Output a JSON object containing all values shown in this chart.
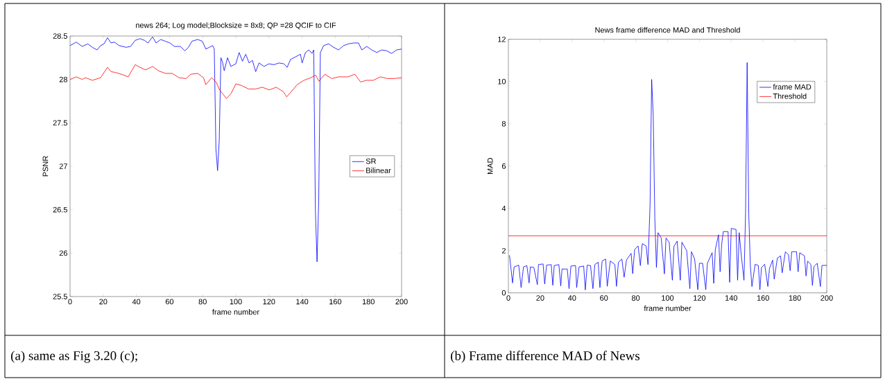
{
  "chart_data": [
    {
      "type": "line",
      "title": "news 264; Log model;Blocksize = 8x8; QP =28 QCIF to CIF",
      "xlabel": "frame number",
      "ylabel": "PSNR",
      "xlim": [
        0,
        200
      ],
      "ylim": [
        25.5,
        28.5
      ],
      "xticks": [
        0,
        20,
        40,
        60,
        80,
        100,
        120,
        140,
        160,
        180,
        200
      ],
      "yticks": [
        25.5,
        26,
        26.5,
        27,
        27.5,
        28,
        28.5
      ],
      "legend": "right",
      "annotations": [
        "(a) same as Fig 3.20 (c);"
      ],
      "series": [
        {
          "name": "SR",
          "color": "#0000ff",
          "x": [
            0,
            3.8,
            7.3,
            10.7,
            13.5,
            16.3,
            18.4,
            20.5,
            22.6,
            24.7,
            26.8,
            29.6,
            33.8,
            36.5,
            39.3,
            42.1,
            44.9,
            47,
            49.8,
            51.9,
            54.7,
            57.5,
            60.3,
            63,
            66.5,
            69.3,
            71.4,
            73.5,
            77,
            79.8,
            81.9,
            84,
            86,
            87,
            88,
            89,
            90,
            91,
            92,
            93,
            95,
            97,
            100,
            102,
            104,
            106,
            108,
            110,
            112,
            114,
            117,
            120,
            123,
            126,
            129,
            131,
            133,
            136,
            139,
            140,
            142,
            144,
            146,
            147,
            148,
            149,
            150,
            151,
            153,
            156,
            159,
            162,
            165,
            168,
            171,
            174,
            176,
            179,
            182,
            185,
            188,
            191,
            194,
            197,
            200
          ],
          "values": [
            28.39,
            28.43,
            28.38,
            28.41,
            28.37,
            28.34,
            28.39,
            28.41,
            28.48,
            28.42,
            28.43,
            28.39,
            28.37,
            28.38,
            28.45,
            28.47,
            28.45,
            28.42,
            28.49,
            28.42,
            28.46,
            28.44,
            28.42,
            28.38,
            28.38,
            28.33,
            28.37,
            28.44,
            28.46,
            28.44,
            28.35,
            28.37,
            28.39,
            28.35,
            27.2,
            26.95,
            27.3,
            28.25,
            28.2,
            28.1,
            28.25,
            28.15,
            28.18,
            28.31,
            28.21,
            28.29,
            28.19,
            28.22,
            28.09,
            28.19,
            28.15,
            28.18,
            28.17,
            28.19,
            28.18,
            28.14,
            28.23,
            28.26,
            28.29,
            28.19,
            28.31,
            28.34,
            28.3,
            28.34,
            26.5,
            25.9,
            26.6,
            28.31,
            28.39,
            28.41,
            28.37,
            28.34,
            28.39,
            28.41,
            28.42,
            28.42,
            28.34,
            28.38,
            28.34,
            28.31,
            28.34,
            28.33,
            28.3,
            28.34,
            28.35
          ]
        },
        {
          "name": "Bilinear",
          "color": "#ff0000",
          "x": [
            0,
            3.8,
            7.3,
            9.3,
            13.5,
            18.4,
            22.6,
            24.7,
            27.5,
            31,
            35.1,
            39.3,
            42.1,
            45.6,
            49.8,
            53.3,
            57.5,
            61.6,
            65.8,
            70,
            72.8,
            77,
            80.5,
            81.9,
            85.4,
            88.1,
            90.2,
            94.4,
            97.2,
            100,
            103.5,
            107.7,
            111.9,
            116,
            120.2,
            124.4,
            128.6,
            130.7,
            133.5,
            137,
            141.1,
            145.3,
            148.1,
            150.2,
            153.7,
            157.9,
            162.1,
            167.6,
            171.8,
            175.3,
            178.8,
            183,
            187.2,
            191.4,
            195.5,
            200
          ],
          "values": [
            28.0,
            28.03,
            28.0,
            28.02,
            27.99,
            28.02,
            28.14,
            28.09,
            28.08,
            28.06,
            28.03,
            28.17,
            28.14,
            28.11,
            28.15,
            28.1,
            28.07,
            28.07,
            28.02,
            28.01,
            28.06,
            28.07,
            28.02,
            27.94,
            28.02,
            27.97,
            27.88,
            27.78,
            27.84,
            27.95,
            27.93,
            27.89,
            27.89,
            27.91,
            27.88,
            27.91,
            27.86,
            27.8,
            27.86,
            27.94,
            27.99,
            28.02,
            28.05,
            27.98,
            28.06,
            28.01,
            28.03,
            28.03,
            28.06,
            27.97,
            27.99,
            27.99,
            28.03,
            28.01,
            28.01,
            28.02
          ]
        }
      ]
    },
    {
      "type": "line",
      "title": "News frame difference MAD and Threshold",
      "xlabel": "frame number",
      "ylabel": "MAD",
      "xlim": [
        0,
        200
      ],
      "ylim": [
        0,
        12
      ],
      "xticks": [
        0,
        20,
        40,
        60,
        80,
        100,
        120,
        140,
        160,
        180,
        200
      ],
      "yticks": [
        0,
        2,
        4,
        6,
        8,
        10,
        12
      ],
      "legend": "top right",
      "annotations": [
        "(b) Frame difference MAD of News"
      ],
      "series": [
        {
          "name": "frame MAD",
          "color": "#0000ff",
          "x": [
            0.7,
            2.6,
            3.6,
            6.5,
            8,
            9.5,
            11.6,
            13,
            13.8,
            16,
            18.2,
            18.9,
            21.8,
            22.8,
            24,
            26.9,
            27.9,
            28.8,
            31.7,
            32.9,
            33.7,
            37,
            38.1,
            39.3,
            42.2,
            42.9,
            44.4,
            47.3,
            48.3,
            49.5,
            51.6,
            53.1,
            54.3,
            56.4,
            57.5,
            58.9,
            61.1,
            62.1,
            64,
            66.9,
            67.9,
            69.1,
            71.3,
            72.7,
            74.2,
            77.1,
            78.1,
            79.3,
            81.5,
            82.9,
            84.1,
            86.5,
            87.7,
            89,
            90,
            91,
            92,
            93,
            94,
            96,
            98,
            99,
            101,
            103,
            104,
            106,
            108,
            109,
            112,
            114,
            115,
            117,
            119,
            120,
            122,
            124,
            125,
            128,
            129,
            130,
            132,
            133,
            134,
            135,
            138,
            139,
            140,
            143,
            144,
            145,
            146,
            148,
            149,
            150,
            151,
            152,
            153,
            155,
            157,
            158,
            159,
            161,
            163,
            164,
            166,
            167,
            169,
            171,
            172,
            174,
            176,
            177,
            178,
            181,
            182,
            183,
            186,
            187,
            188,
            190,
            191,
            192,
            194,
            196,
            197,
            200
          ],
          "values": [
            1.78,
            0.47,
            1.23,
            1.31,
            0.25,
            1.23,
            1.29,
            0.47,
            1.23,
            1.2,
            0.39,
            1.34,
            1.37,
            0.42,
            1.31,
            1.34,
            0.36,
            1.29,
            1.34,
            0.33,
            1.13,
            1.13,
            0.2,
            1.27,
            1.29,
            0.25,
            1.23,
            1.27,
            0.14,
            1.31,
            1.29,
            0.2,
            1.34,
            1.45,
            0.25,
            1.51,
            1.6,
            0.31,
            1.51,
            1.34,
            0.31,
            1.45,
            1.6,
            0.74,
            1.56,
            1.87,
            0.91,
            2.05,
            2.22,
            1.29,
            2.33,
            2.22,
            1.34,
            4.19,
            10.1,
            8.4,
            3.5,
            1.2,
            2.85,
            2.6,
            0.9,
            2.6,
            2.4,
            0.6,
            2.2,
            2.45,
            0.6,
            2.4,
            2.0,
            0.2,
            1.95,
            1.6,
            0.15,
            1.4,
            1.4,
            0.15,
            1.4,
            1.9,
            0.45,
            2.05,
            2.75,
            1.0,
            2.3,
            2.9,
            2.9,
            0.5,
            3.05,
            3.0,
            0.6,
            2.85,
            2.0,
            0.6,
            3.8,
            10.9,
            3.75,
            1.3,
            0.3,
            1.35,
            1.3,
            0.15,
            1.2,
            1.35,
            0.3,
            1.15,
            1.55,
            0.65,
            1.65,
            1.75,
            0.95,
            1.95,
            1.8,
            1.05,
            1.95,
            1.95,
            1.0,
            1.9,
            1.75,
            0.8,
            1.5,
            1.35,
            0.35,
            1.25,
            1.4,
            0.3,
            1.3,
            1.3
          ]
        },
        {
          "name": "Threshold",
          "color": "#ff0000",
          "x": [
            0,
            200
          ],
          "values": [
            2.7,
            2.7
          ]
        }
      ]
    }
  ]
}
